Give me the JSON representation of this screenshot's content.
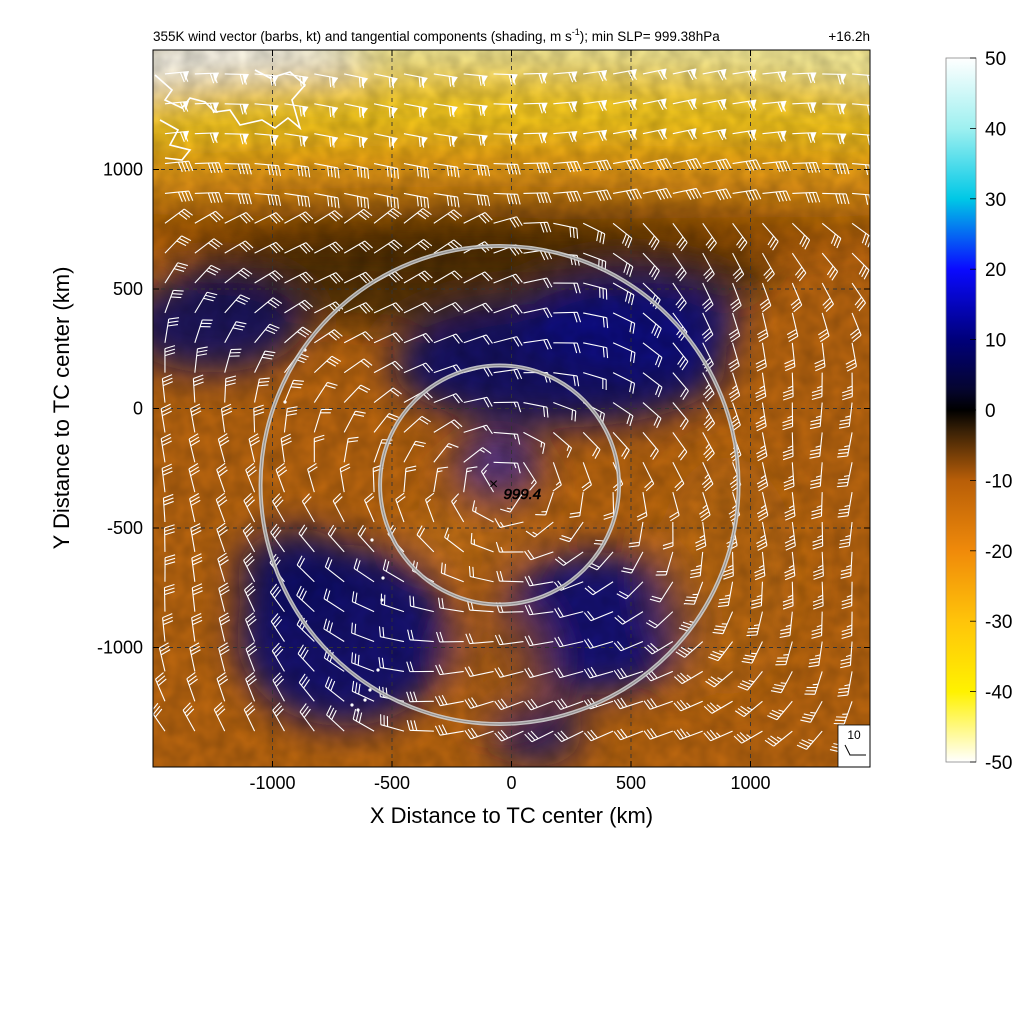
{
  "chart_data": {
    "type": "heatmap",
    "title": "355K wind vector (barbs, kt) and tangential components (shading, m s",
    "title_sup": "-1",
    "title_tail": "); min SLP= 999.38hPa",
    "time_label": "+16.2h",
    "xlabel": "X Distance to TC center (km)",
    "ylabel": "Y Distance to TC center (km)",
    "xlim": [
      -1500,
      1500
    ],
    "ylim": [
      -1500,
      1500
    ],
    "x_ticks": [
      -1000,
      -500,
      0,
      500,
      1000
    ],
    "y_ticks": [
      -1000,
      -500,
      0,
      500,
      1000
    ],
    "grid": true,
    "colorbar": {
      "min": -50,
      "max": 50,
      "ticks": [
        50,
        40,
        30,
        20,
        10,
        0,
        -10,
        -20,
        -30,
        -40,
        -50
      ],
      "stops": [
        {
          "v": -50,
          "color": "#ffffff"
        },
        {
          "v": -40,
          "color": "#fff200"
        },
        {
          "v": -30,
          "color": "#ffc40a"
        },
        {
          "v": -20,
          "color": "#f08a0a"
        },
        {
          "v": -10,
          "color": "#b85e08"
        },
        {
          "v": -3,
          "color": "#3a2106"
        },
        {
          "v": 0,
          "color": "#000000"
        },
        {
          "v": 3,
          "color": "#050530"
        },
        {
          "v": 10,
          "color": "#00007a"
        },
        {
          "v": 20,
          "color": "#0a0aff"
        },
        {
          "v": 30,
          "color": "#00c8e6"
        },
        {
          "v": 40,
          "color": "#9ef0f0"
        },
        {
          "v": 50,
          "color": "#ffffff"
        }
      ]
    },
    "center_marker": {
      "x": -50,
      "y": -320,
      "label": "999.4"
    },
    "range_rings": [
      {
        "cx": -50,
        "cy": -320,
        "r_km": 500
      },
      {
        "cx": -50,
        "cy": -320,
        "r_km": 1000
      }
    ],
    "barb_reference": {
      "label": "10"
    }
  }
}
